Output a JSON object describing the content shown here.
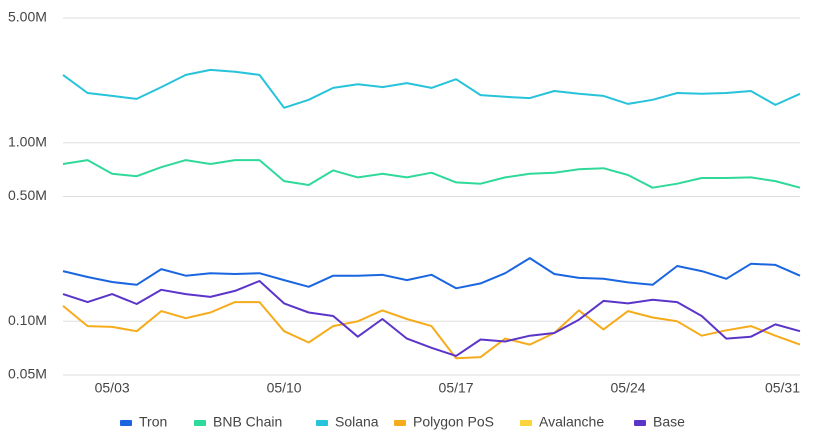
{
  "chart_data": {
    "type": "line",
    "log_scale": true,
    "grid": true,
    "legend": "bottom",
    "categories": [
      null,
      null,
      "05/03",
      null,
      null,
      null,
      null,
      null,
      null,
      "05/10",
      null,
      null,
      null,
      null,
      null,
      null,
      "05/17",
      null,
      null,
      null,
      null,
      null,
      null,
      "05/24",
      null,
      null,
      null,
      null,
      null,
      null,
      "05/31"
    ],
    "ylim": [
      50000,
      5000000
    ],
    "yticks": [
      {
        "value": 50000,
        "label": "0.05M"
      },
      {
        "value": 100000,
        "label": "0.10M"
      },
      {
        "value": 500000,
        "label": "0.50M"
      },
      {
        "value": 1000000,
        "label": "1.00M"
      },
      {
        "value": 5000000,
        "label": "5.00M"
      }
    ],
    "series": [
      {
        "name": "Tron",
        "color": "#1a66e0",
        "values": [
          191000,
          177000,
          166000,
          160000,
          196000,
          180000,
          186000,
          184000,
          186000,
          170000,
          156000,
          180000,
          180000,
          182000,
          170000,
          182000,
          153000,
          163000,
          186000,
          226000,
          184000,
          175000,
          173000,
          165000,
          160000,
          204000,
          191000,
          173000,
          210000,
          207000,
          180000
        ]
      },
      {
        "name": "BNB Chain",
        "color": "#2fd99a",
        "values": [
          760000,
          800000,
          670000,
          650000,
          730000,
          800000,
          760000,
          800000,
          800000,
          610000,
          580000,
          700000,
          640000,
          670000,
          640000,
          680000,
          600000,
          590000,
          640000,
          670000,
          680000,
          710000,
          720000,
          660000,
          560000,
          590000,
          635000,
          635000,
          640000,
          610000,
          560000
        ]
      },
      {
        "name": "Solana",
        "color": "#27c3da",
        "values": [
          2400000,
          1900000,
          1830000,
          1760000,
          2050000,
          2400000,
          2560000,
          2500000,
          2400000,
          1570000,
          1740000,
          2030000,
          2130000,
          2050000,
          2160000,
          2030000,
          2270000,
          1850000,
          1810000,
          1780000,
          1950000,
          1880000,
          1830000,
          1650000,
          1740000,
          1900000,
          1880000,
          1900000,
          1950000,
          1630000,
          1880000
        ]
      },
      {
        "name": "Polygon PoS",
        "color": "#f6ab1b",
        "values": [
          122000,
          94000,
          93000,
          88000,
          114000,
          104000,
          112000,
          128000,
          128000,
          88000,
          76000,
          94000,
          100000,
          115000,
          103000,
          94000,
          62000,
          63000,
          80000,
          74000,
          86000,
          115000,
          90000,
          114000,
          105000,
          100000,
          83000,
          89000,
          94000,
          83000,
          74000
        ]
      },
      {
        "name": "Avalanche",
        "color": "#fbd33a",
        "values": [
          null,
          null,
          null,
          null,
          null,
          null,
          null,
          null,
          null,
          null,
          null,
          null,
          null,
          null,
          null,
          null,
          null,
          null,
          null,
          null,
          null,
          null,
          null,
          null,
          null,
          null,
          null,
          null,
          null,
          null,
          null
        ]
      },
      {
        "name": "Base",
        "color": "#5b35c9",
        "values": [
          142000,
          128000,
          142000,
          125000,
          150000,
          142000,
          137000,
          148000,
          168000,
          126000,
          112000,
          107000,
          82000,
          103000,
          80000,
          71000,
          64000,
          79000,
          77000,
          83000,
          86000,
          102000,
          130000,
          126000,
          132000,
          128000,
          107000,
          80000,
          82000,
          96000,
          88000
        ]
      }
    ]
  }
}
